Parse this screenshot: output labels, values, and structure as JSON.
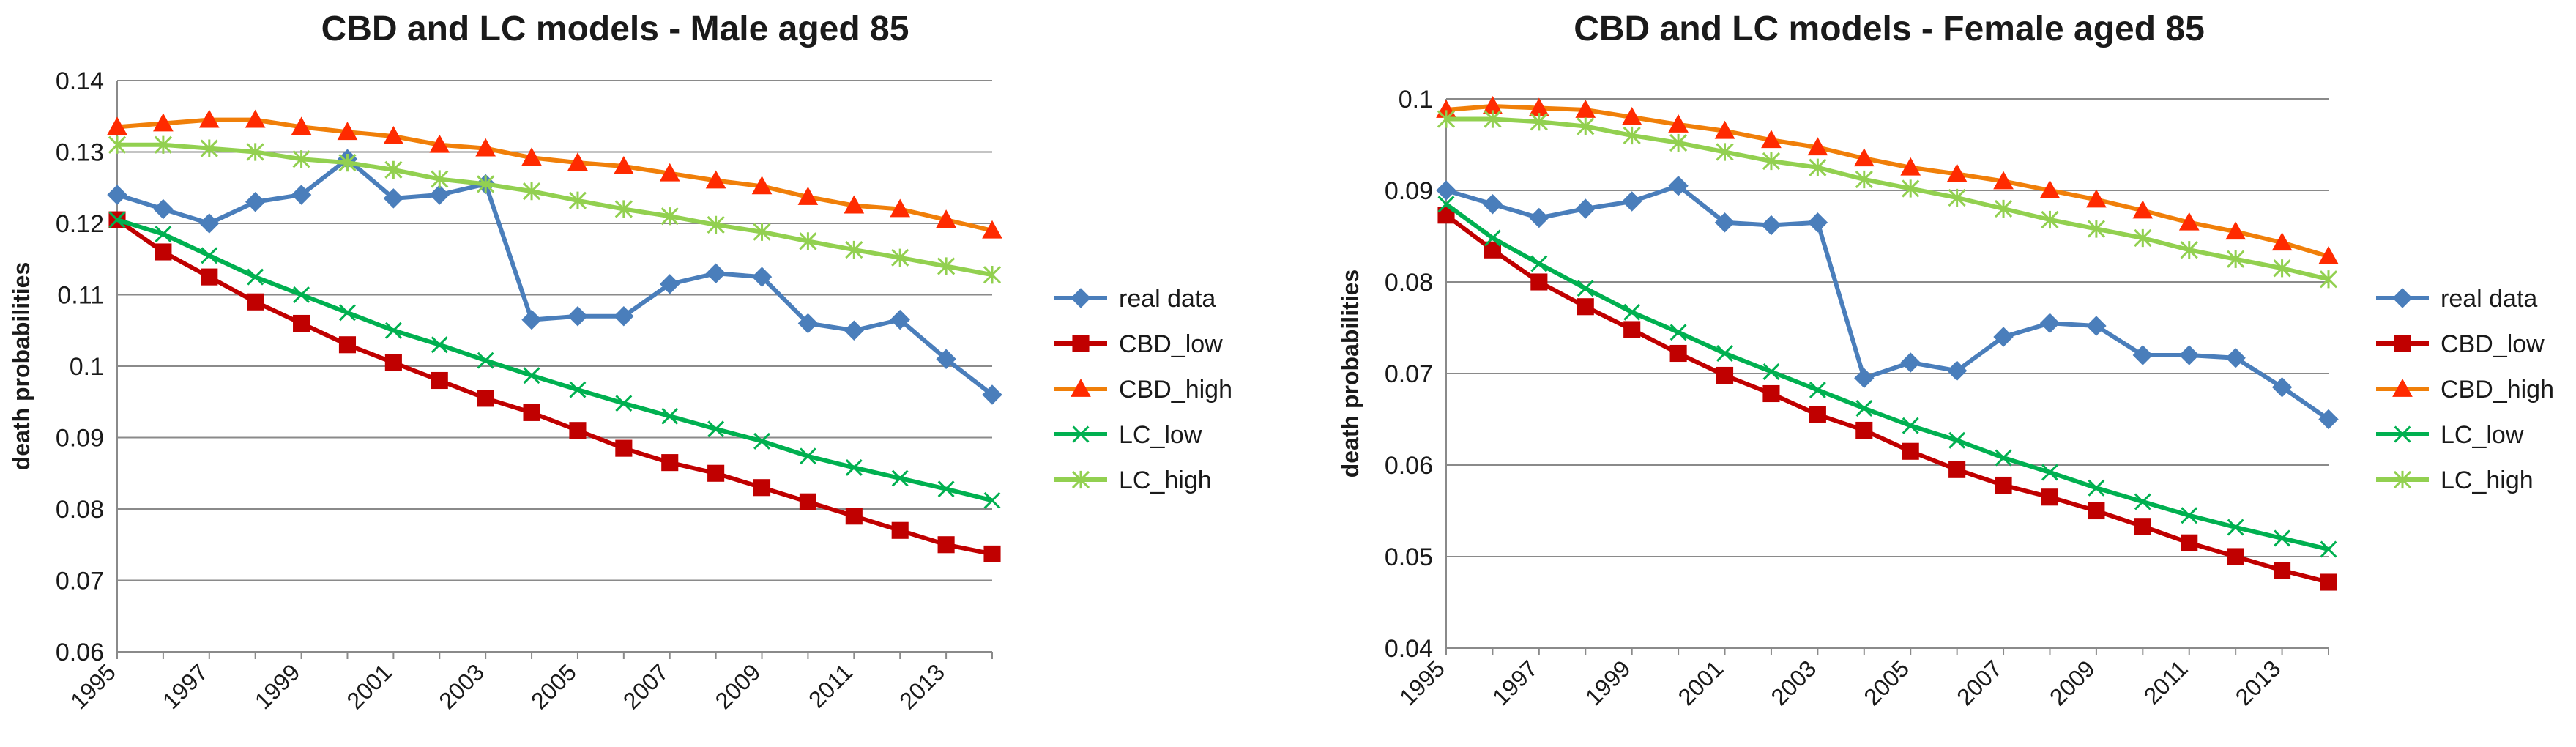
{
  "chart_data": [
    {
      "type": "line",
      "title": "CBD and LC models - Male aged 85",
      "ylabel": "death probabilities",
      "xlabel": "",
      "ylim": [
        0.06,
        0.14
      ],
      "yticks": [
        0.06,
        0.07,
        0.08,
        0.09,
        0.1,
        0.11,
        0.12,
        0.13,
        0.14
      ],
      "ytick_labels": [
        "0.06",
        "0.07",
        "0.08",
        "0.09",
        "0.1",
        "0.11",
        "0.12",
        "0.13",
        "0.14"
      ],
      "x": [
        1995,
        1996,
        1997,
        1998,
        1999,
        2000,
        2001,
        2002,
        2003,
        2004,
        2005,
        2006,
        2007,
        2008,
        2009,
        2010,
        2011,
        2012,
        2013,
        2014
      ],
      "xtick_labels": [
        "1995",
        "1997",
        "1999",
        "2001",
        "2003",
        "2005",
        "2007",
        "2009",
        "2011",
        "2013"
      ],
      "grid": true,
      "legend_position": "right",
      "series": [
        {
          "name": "real data",
          "color": "#4a7ebb",
          "marker": "diamond",
          "values": [
            0.124,
            0.122,
            0.12,
            0.123,
            0.124,
            0.129,
            0.1235,
            0.124,
            0.1255,
            0.1065,
            0.107,
            0.107,
            0.1115,
            0.113,
            0.1125,
            0.106,
            0.105,
            0.1065,
            0.101,
            0.096
          ]
        },
        {
          "name": "CBD_low",
          "color": "#c00000",
          "marker": "square",
          "values": [
            0.1205,
            0.116,
            0.1125,
            0.109,
            0.106,
            0.103,
            0.1005,
            0.098,
            0.0955,
            0.0935,
            0.091,
            0.0885,
            0.0865,
            0.085,
            0.083,
            0.081,
            0.079,
            0.077,
            0.075,
            0.0737
          ]
        },
        {
          "name": "CBD_high",
          "color": "#f07f09",
          "marker": "triangle",
          "marker_color": "#ff2a00",
          "values": [
            0.1335,
            0.134,
            0.1345,
            0.1345,
            0.1335,
            0.1328,
            0.1322,
            0.131,
            0.1305,
            0.1292,
            0.1285,
            0.128,
            0.127,
            0.126,
            0.1252,
            0.1237,
            0.1225,
            0.122,
            0.1205,
            0.119
          ]
        },
        {
          "name": "LC_low",
          "color": "#00b050",
          "marker": "x",
          "values": [
            0.1205,
            0.1185,
            0.1155,
            0.1125,
            0.11,
            0.1075,
            0.105,
            0.103,
            0.1008,
            0.0987,
            0.0967,
            0.0948,
            0.093,
            0.0912,
            0.0895,
            0.0874,
            0.0858,
            0.0843,
            0.0828,
            0.0812
          ]
        },
        {
          "name": "LC_high",
          "color": "#92d050",
          "marker": "star",
          "values": [
            0.131,
            0.131,
            0.1305,
            0.13,
            0.129,
            0.1285,
            0.1275,
            0.1262,
            0.1255,
            0.1245,
            0.1232,
            0.122,
            0.121,
            0.1198,
            0.1188,
            0.1175,
            0.1163,
            0.1152,
            0.114,
            0.1128
          ]
        }
      ]
    },
    {
      "type": "line",
      "title": "CBD and LC models - Female aged 85",
      "ylabel": "death probabilities",
      "xlabel": "",
      "ylim": [
        0.04,
        0.1
      ],
      "yticks": [
        0.04,
        0.05,
        0.06,
        0.07,
        0.08,
        0.09,
        0.1
      ],
      "ytick_labels": [
        "0.04",
        "0.05",
        "0.06",
        "0.07",
        "0.08",
        "0.09",
        "0.1"
      ],
      "x": [
        1995,
        1996,
        1997,
        1998,
        1999,
        2000,
        2001,
        2002,
        2003,
        2004,
        2005,
        2006,
        2007,
        2008,
        2009,
        2010,
        2011,
        2012,
        2013,
        2014
      ],
      "xtick_labels": [
        "1995",
        "1997",
        "1999",
        "2001",
        "2003",
        "2005",
        "2007",
        "2009",
        "2011",
        "2013"
      ],
      "grid": true,
      "legend_position": "right",
      "series": [
        {
          "name": "real data",
          "color": "#4a7ebb",
          "marker": "diamond",
          "values": [
            0.09,
            0.0885,
            0.087,
            0.088,
            0.0888,
            0.0905,
            0.0865,
            0.0862,
            0.0865,
            0.0695,
            0.0712,
            0.0703,
            0.074,
            0.0755,
            0.0752,
            0.072,
            0.072,
            0.0717,
            0.0685,
            0.065
          ]
        },
        {
          "name": "CBD_low",
          "color": "#c00000",
          "marker": "square",
          "values": [
            0.0873,
            0.0835,
            0.08,
            0.0773,
            0.0748,
            0.0722,
            0.0698,
            0.0678,
            0.0655,
            0.0638,
            0.0615,
            0.0595,
            0.0578,
            0.0565,
            0.055,
            0.0533,
            0.0515,
            0.05,
            0.0485,
            0.0472
          ]
        },
        {
          "name": "CBD_high",
          "color": "#f07f09",
          "marker": "triangle",
          "marker_color": "#ff2a00",
          "values": [
            0.0988,
            0.0992,
            0.099,
            0.0988,
            0.098,
            0.0972,
            0.0965,
            0.0955,
            0.0947,
            0.0935,
            0.0925,
            0.0918,
            0.091,
            0.09,
            0.089,
            0.0878,
            0.0865,
            0.0855,
            0.0843,
            0.0828
          ]
        },
        {
          "name": "LC_low",
          "color": "#00b050",
          "marker": "x",
          "values": [
            0.0885,
            0.0848,
            0.082,
            0.0793,
            0.0767,
            0.0745,
            0.0722,
            0.0702,
            0.0682,
            0.0662,
            0.0643,
            0.0627,
            0.0608,
            0.0592,
            0.0575,
            0.056,
            0.0545,
            0.0532,
            0.052,
            0.0508
          ]
        },
        {
          "name": "LC_high",
          "color": "#92d050",
          "marker": "star",
          "values": [
            0.0978,
            0.0978,
            0.0975,
            0.097,
            0.096,
            0.0952,
            0.0942,
            0.0932,
            0.0925,
            0.0912,
            0.0902,
            0.0892,
            0.088,
            0.0868,
            0.0858,
            0.0848,
            0.0835,
            0.0825,
            0.0815,
            0.0803
          ]
        }
      ]
    }
  ]
}
